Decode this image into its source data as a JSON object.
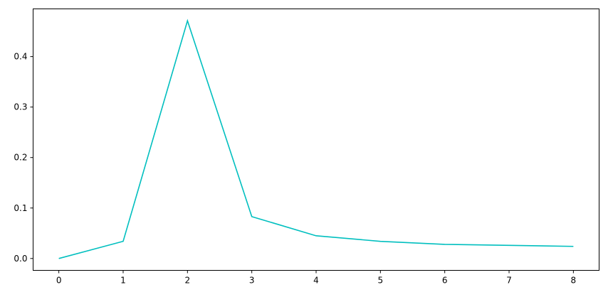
{
  "chart_data": {
    "type": "line",
    "title": "",
    "xlabel": "",
    "ylabel": "",
    "x": [
      0,
      1,
      2,
      3,
      4,
      5,
      6,
      7,
      8
    ],
    "series": [
      {
        "values": [
          0.0,
          0.034,
          0.471,
          0.083,
          0.045,
          0.034,
          0.028,
          0.026,
          0.024
        ],
        "color": "#00bfbf"
      }
    ],
    "xlim": [
      -0.4,
      8.4
    ],
    "ylim": [
      -0.0235,
      0.4945
    ],
    "xticks": [
      "0",
      "1",
      "2",
      "3",
      "4",
      "5",
      "6",
      "7",
      "8"
    ],
    "yticks": [
      "0.0",
      "0.1",
      "0.2",
      "0.3",
      "0.4"
    ],
    "grid": false
  }
}
